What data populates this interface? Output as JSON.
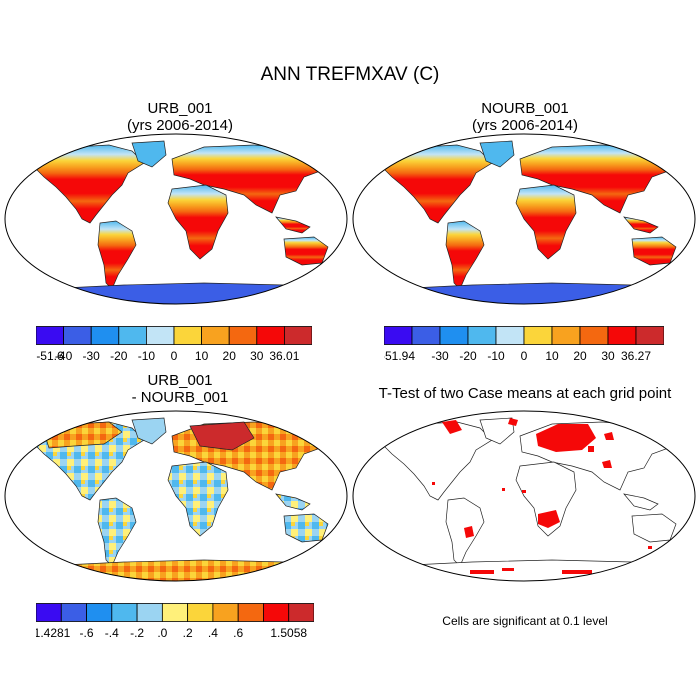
{
  "title": "ANN TREFMXAV (C)",
  "panels": [
    {
      "title_line1": "URB_001",
      "title_line2": "(yrs 2006-2014)",
      "colorbar": {
        "colors": [
          "#3a0bf2",
          "#3b5ee6",
          "#1f8ff0",
          "#4fb8ee",
          "#c2e4f6",
          "#fbd53a",
          "#f8a21f",
          "#f46810",
          "#f50808",
          "#cc2a2c"
        ],
        "labels": [
          "-51.6",
          "-40",
          "-30",
          "-20",
          "-10",
          "0",
          "10",
          "20",
          "30",
          "36.01"
        ]
      }
    },
    {
      "title_line1": "NOURB_001",
      "title_line2": "(yrs 2006-2014)",
      "colorbar": {
        "colors": [
          "#3a0bf2",
          "#3b5ee6",
          "#1f8ff0",
          "#4fb8ee",
          "#c2e4f6",
          "#fbd53a",
          "#f8a21f",
          "#f46810",
          "#f50808",
          "#cc2a2c"
        ],
        "labels": [
          "-51.94",
          "",
          "-30",
          "-20",
          "-10",
          "0",
          "10",
          "20",
          "30",
          "36.27"
        ]
      }
    },
    {
      "title_line1": "URB_001",
      "title_line2": "- NOURB_001",
      "colorbar": {
        "colors": [
          "#3a0bf2",
          "#3b5ee6",
          "#1f8ff0",
          "#4fb8ee",
          "#9bd4f2",
          "#fff07a",
          "#fbd53a",
          "#f8a21f",
          "#f46810",
          "#f50808",
          "#cc2a2c"
        ],
        "labels": [
          "-1.4281",
          "",
          "-.6",
          "-.4",
          "-.2",
          ".0",
          ".2",
          ".4",
          ".6",
          "",
          "1.5058"
        ]
      }
    },
    {
      "title_line1": "T-Test of two Case means at each grid point",
      "note": "Cells are significant at 0.1 level"
    }
  ]
}
